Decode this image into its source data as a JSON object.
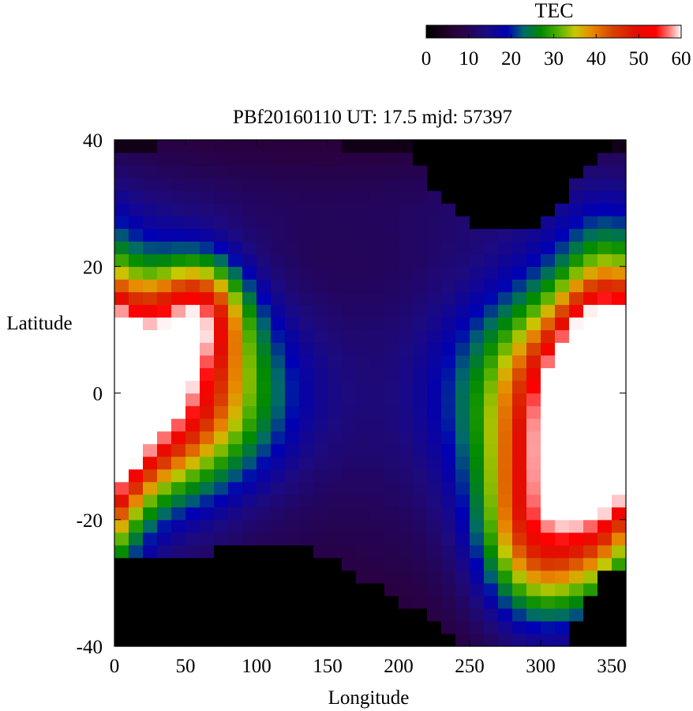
{
  "chart_data": {
    "type": "heatmap",
    "title": "PBf20160110  UT: 17.5  mjd: 57397",
    "xlabel": "Longitude",
    "ylabel": "Latitude",
    "xlim": [
      0,
      360
    ],
    "ylim": [
      -40,
      40
    ],
    "x_ticks": [
      "0",
      "50",
      "100",
      "150",
      "200",
      "250",
      "300",
      "350"
    ],
    "y_ticks": [
      "40",
      "20",
      "0",
      "-20",
      "-40"
    ],
    "grid": false,
    "colorbar": {
      "label": "TEC",
      "range": [
        0,
        60
      ],
      "ticks": [
        "0",
        "10",
        "20",
        "30",
        "40",
        "50",
        "60"
      ],
      "placement": "top-right",
      "colormap": [
        [
          0,
          "#000000"
        ],
        [
          7,
          "#2a0038"
        ],
        [
          14,
          "#1c0a80"
        ],
        [
          19,
          "#0000b4"
        ],
        [
          23,
          "#006a6a"
        ],
        [
          27,
          "#008a00"
        ],
        [
          31,
          "#50b000"
        ],
        [
          35,
          "#c8c800"
        ],
        [
          39,
          "#e88800"
        ],
        [
          44,
          "#d84000"
        ],
        [
          49,
          "#e01000"
        ],
        [
          54,
          "#ff0000"
        ],
        [
          57,
          "#ff7070"
        ],
        [
          60,
          "#ffffff"
        ]
      ]
    },
    "cell_size_deg": [
      10,
      2
    ],
    "southern_boundary": {
      "lon": [
        0,
        10,
        20,
        30,
        40,
        50,
        60,
        70,
        80,
        90,
        100,
        110,
        120,
        130,
        140,
        150,
        160,
        170,
        180,
        190,
        200,
        210,
        220,
        230,
        240,
        250,
        260,
        270,
        280,
        290,
        300,
        310,
        320,
        330,
        340,
        350
      ],
      "lat": [
        -26,
        -25,
        -25,
        -25,
        -25,
        -26,
        -25,
        -25,
        -24,
        -23,
        -23,
        -23,
        -24,
        -24,
        -25,
        -26,
        -27,
        -28,
        -30,
        -31,
        -33,
        -34,
        -35,
        -36,
        -38,
        -40,
        -40,
        -40,
        -40,
        -40,
        -40,
        -40,
        -38,
        -34,
        -30,
        -27
      ]
    },
    "northern_boundary": {
      "lon": [
        210,
        220,
        230,
        240,
        250,
        260,
        270,
        280,
        290,
        300,
        310,
        320,
        330,
        340,
        350
      ],
      "lat": [
        40,
        33,
        31,
        29,
        27,
        26,
        25,
        25,
        26,
        27,
        29,
        32,
        35,
        37,
        39
      ]
    },
    "anomaly_crests": [
      {
        "lon": 10,
        "lat": 0,
        "tec": 55,
        "lon_width": 90,
        "lat_width": 14
      },
      {
        "lon": 60,
        "lat": 13,
        "tec": 44,
        "lon_width": 30,
        "lat_width": 8
      },
      {
        "lon": 345,
        "lat": -3,
        "tec": 56,
        "lon_width": 30,
        "lat_width": 22
      },
      {
        "lon": 300,
        "lat": -22,
        "tec": 50,
        "lon_width": 40,
        "lat_width": 14
      }
    ]
  }
}
